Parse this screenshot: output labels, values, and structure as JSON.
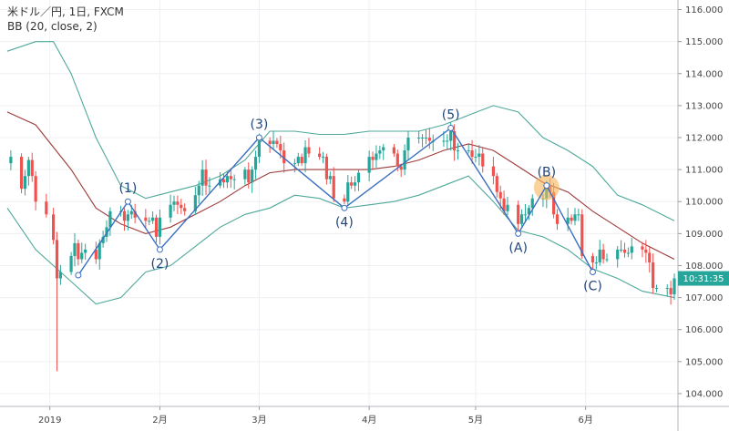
{
  "legend": {
    "symbol_line": "米ドル／円, 1日, FXCM",
    "indicator_line": "BB (20, close, 2)"
  },
  "price_tag": {
    "text": "10:31:35",
    "color": "#26a69a"
  },
  "colors": {
    "up": "#26a69a",
    "down": "#ef5350",
    "band": "#4fa89a",
    "basis": "#9e3a3a",
    "wave": "#3a6fbf",
    "highlight": "#f7b55a"
  },
  "chart_data": {
    "type": "candlestick",
    "title": "米ドル／円, 1日, FXCM",
    "indicator": "BB (20, close, 2)",
    "y_range": [
      103.6,
      116.3
    ],
    "y_ticks": [
      "116.000",
      "115.000",
      "114.000",
      "113.000",
      "112.000",
      "111.000",
      "110.000",
      "109.000",
      "108.000",
      "107.000",
      "106.000",
      "105.000",
      "104.000"
    ],
    "x_range": [
      "2018-12-20",
      "2019-06-26"
    ],
    "x_ticks": [
      {
        "date": "2019-01-01",
        "label": "2019"
      },
      {
        "date": "2019-02-01",
        "label": "2月"
      },
      {
        "date": "2019-03-01",
        "label": "3月"
      },
      {
        "date": "2019-04-01",
        "label": "4月"
      },
      {
        "date": "2019-05-01",
        "label": "5月"
      },
      {
        "date": "2019-06-01",
        "label": "6月"
      }
    ],
    "price_path": [
      [
        "2018-12-20",
        111.2
      ],
      [
        "2018-12-21",
        111.4
      ],
      [
        "2018-12-24",
        110.4
      ],
      [
        "2018-12-25",
        110.8
      ],
      [
        "2018-12-26",
        111.3
      ],
      [
        "2018-12-27",
        110.8
      ],
      [
        "2018-12-28",
        110.0
      ],
      [
        "2018-12-31",
        109.6
      ],
      [
        "2019-01-02",
        108.8
      ],
      [
        "2019-01-03",
        107.6
      ],
      [
        "2019-01-04",
        107.8
      ],
      [
        "2019-01-07",
        108.3
      ],
      [
        "2019-01-08",
        108.7
      ],
      [
        "2019-01-09",
        108.2
      ],
      [
        "2019-01-10",
        108.4
      ],
      [
        "2019-01-11",
        108.5
      ],
      [
        "2019-01-14",
        108.2
      ],
      [
        "2019-01-15",
        108.7
      ],
      [
        "2019-01-16",
        108.9
      ],
      [
        "2019-01-17",
        109.2
      ],
      [
        "2019-01-18",
        109.7
      ],
      [
        "2019-01-21",
        109.7
      ],
      [
        "2019-01-22",
        109.4
      ],
      [
        "2019-01-23",
        109.6
      ],
      [
        "2019-01-24",
        109.7
      ],
      [
        "2019-01-25",
        109.5
      ],
      [
        "2019-01-28",
        109.4
      ],
      [
        "2019-01-29",
        109.4
      ],
      [
        "2019-01-30",
        109.5
      ],
      [
        "2019-01-31",
        108.9
      ],
      [
        "2019-02-01",
        109.5
      ],
      [
        "2019-02-04",
        109.9
      ],
      [
        "2019-02-05",
        110.0
      ],
      [
        "2019-02-06",
        109.9
      ],
      [
        "2019-02-07",
        109.8
      ],
      [
        "2019-02-08",
        109.7
      ],
      [
        "2019-02-11",
        110.2
      ],
      [
        "2019-02-12",
        110.5
      ],
      [
        "2019-02-13",
        111.0
      ],
      [
        "2019-02-14",
        110.5
      ],
      [
        "2019-02-15",
        110.5
      ],
      [
        "2019-02-18",
        110.7
      ],
      [
        "2019-02-19",
        110.6
      ],
      [
        "2019-02-20",
        110.8
      ],
      [
        "2019-02-21",
        110.7
      ],
      [
        "2019-02-22",
        110.7
      ],
      [
        "2019-02-25",
        111.0
      ],
      [
        "2019-02-26",
        110.6
      ],
      [
        "2019-02-27",
        111.0
      ],
      [
        "2019-02-28",
        111.4
      ],
      [
        "2019-03-01",
        111.9
      ],
      [
        "2019-03-04",
        111.8
      ],
      [
        "2019-03-05",
        111.9
      ],
      [
        "2019-03-06",
        111.8
      ],
      [
        "2019-03-07",
        111.6
      ],
      [
        "2019-03-08",
        111.2
      ],
      [
        "2019-03-11",
        111.2
      ],
      [
        "2019-03-12",
        111.4
      ],
      [
        "2019-03-13",
        111.2
      ],
      [
        "2019-03-14",
        111.7
      ],
      [
        "2019-03-15",
        111.5
      ],
      [
        "2019-03-18",
        111.4
      ],
      [
        "2019-03-19",
        111.4
      ],
      [
        "2019-03-20",
        110.7
      ],
      [
        "2019-03-21",
        110.8
      ],
      [
        "2019-03-22",
        110.1
      ],
      [
        "2019-03-25",
        110.0
      ],
      [
        "2019-03-26",
        110.6
      ],
      [
        "2019-03-27",
        110.5
      ],
      [
        "2019-03-28",
        110.6
      ],
      [
        "2019-03-29",
        110.9
      ],
      [
        "2019-04-01",
        111.4
      ],
      [
        "2019-04-02",
        111.3
      ],
      [
        "2019-04-03",
        111.5
      ],
      [
        "2019-04-04",
        111.6
      ],
      [
        "2019-04-05",
        111.7
      ],
      [
        "2019-04-08",
        111.5
      ],
      [
        "2019-04-09",
        111.1
      ],
      [
        "2019-04-10",
        111.0
      ],
      [
        "2019-04-11",
        111.6
      ],
      [
        "2019-04-12",
        112.0
      ],
      [
        "2019-04-15",
        112.0
      ],
      [
        "2019-04-16",
        112.0
      ],
      [
        "2019-04-17",
        112.0
      ],
      [
        "2019-04-18",
        111.9
      ],
      [
        "2019-04-19",
        111.9
      ],
      [
        "2019-04-22",
        111.9
      ],
      [
        "2019-04-23",
        111.9
      ],
      [
        "2019-04-24",
        112.2
      ],
      [
        "2019-04-25",
        111.6
      ],
      [
        "2019-04-26",
        111.6
      ],
      [
        "2019-04-29",
        111.6
      ],
      [
        "2019-04-30",
        111.4
      ],
      [
        "2019-05-01",
        111.4
      ],
      [
        "2019-05-02",
        111.5
      ],
      [
        "2019-05-03",
        111.1
      ],
      [
        "2019-05-06",
        110.8
      ],
      [
        "2019-05-07",
        110.3
      ],
      [
        "2019-05-08",
        110.1
      ],
      [
        "2019-05-09",
        109.7
      ],
      [
        "2019-05-10",
        109.9
      ],
      [
        "2019-05-13",
        109.3
      ],
      [
        "2019-05-14",
        109.6
      ],
      [
        "2019-05-15",
        109.6
      ],
      [
        "2019-05-16",
        109.8
      ],
      [
        "2019-05-17",
        110.1
      ],
      [
        "2019-05-20",
        110.1
      ],
      [
        "2019-05-21",
        110.5
      ],
      [
        "2019-05-22",
        110.3
      ],
      [
        "2019-05-23",
        109.6
      ],
      [
        "2019-05-24",
        109.3
      ],
      [
        "2019-05-27",
        109.5
      ],
      [
        "2019-05-28",
        109.4
      ],
      [
        "2019-05-29",
        109.6
      ],
      [
        "2019-05-30",
        109.6
      ],
      [
        "2019-05-31",
        108.3
      ],
      [
        "2019-06-03",
        108.1
      ],
      [
        "2019-06-04",
        108.1
      ],
      [
        "2019-06-05",
        108.5
      ],
      [
        "2019-06-06",
        108.2
      ],
      [
        "2019-06-07",
        108.2
      ],
      [
        "2019-06-10",
        108.5
      ],
      [
        "2019-06-11",
        108.5
      ],
      [
        "2019-06-12",
        108.4
      ],
      [
        "2019-06-13",
        108.4
      ],
      [
        "2019-06-14",
        108.6
      ],
      [
        "2019-06-17",
        108.5
      ],
      [
        "2019-06-18",
        108.4
      ],
      [
        "2019-06-19",
        108.1
      ],
      [
        "2019-06-20",
        107.3
      ],
      [
        "2019-06-21",
        107.3
      ],
      [
        "2019-06-24",
        107.3
      ],
      [
        "2019-06-25",
        107.1
      ],
      [
        "2019-06-26",
        107.6
      ]
    ],
    "spike_low": {
      "date": "2019-01-03",
      "low": 104.7
    },
    "bollinger": {
      "upper": [
        [
          "2018-12-20",
          114.7
        ],
        [
          "2018-12-28",
          115.0
        ],
        [
          "2019-01-02",
          115.0
        ],
        [
          "2019-01-07",
          114.0
        ],
        [
          "2019-01-14",
          112.0
        ],
        [
          "2019-01-21",
          110.5
        ],
        [
          "2019-01-28",
          110.1
        ],
        [
          "2019-02-04",
          110.3
        ],
        [
          "2019-02-11",
          110.5
        ],
        [
          "2019-02-18",
          110.8
        ],
        [
          "2019-02-25",
          111.3
        ],
        [
          "2019-03-04",
          112.2
        ],
        [
          "2019-03-11",
          112.2
        ],
        [
          "2019-03-18",
          112.1
        ],
        [
          "2019-03-25",
          112.1
        ],
        [
          "2019-04-01",
          112.2
        ],
        [
          "2019-04-08",
          112.2
        ],
        [
          "2019-04-15",
          112.2
        ],
        [
          "2019-04-22",
          112.4
        ],
        [
          "2019-04-29",
          112.7
        ],
        [
          "2019-05-06",
          113.0
        ],
        [
          "2019-05-13",
          112.8
        ],
        [
          "2019-05-20",
          112.0
        ],
        [
          "2019-05-27",
          111.6
        ],
        [
          "2019-06-03",
          111.1
        ],
        [
          "2019-06-10",
          110.2
        ],
        [
          "2019-06-17",
          109.9
        ],
        [
          "2019-06-26",
          109.4
        ]
      ],
      "basis": [
        [
          "2018-12-20",
          112.8
        ],
        [
          "2018-12-28",
          112.4
        ],
        [
          "2019-01-07",
          111.0
        ],
        [
          "2019-01-14",
          109.8
        ],
        [
          "2019-01-21",
          109.3
        ],
        [
          "2019-01-28",
          109.0
        ],
        [
          "2019-02-04",
          109.2
        ],
        [
          "2019-02-11",
          109.6
        ],
        [
          "2019-02-18",
          110.0
        ],
        [
          "2019-02-25",
          110.5
        ],
        [
          "2019-03-04",
          110.9
        ],
        [
          "2019-03-11",
          111.0
        ],
        [
          "2019-03-18",
          111.0
        ],
        [
          "2019-03-25",
          111.0
        ],
        [
          "2019-04-01",
          111.0
        ],
        [
          "2019-04-08",
          111.1
        ],
        [
          "2019-04-15",
          111.3
        ],
        [
          "2019-04-22",
          111.6
        ],
        [
          "2019-04-29",
          111.8
        ],
        [
          "2019-05-06",
          111.6
        ],
        [
          "2019-05-13",
          111.1
        ],
        [
          "2019-05-20",
          110.6
        ],
        [
          "2019-05-27",
          110.3
        ],
        [
          "2019-06-03",
          109.7
        ],
        [
          "2019-06-10",
          109.2
        ],
        [
          "2019-06-17",
          108.7
        ],
        [
          "2019-06-26",
          108.2
        ]
      ],
      "lower": [
        [
          "2018-12-20",
          109.8
        ],
        [
          "2018-12-28",
          108.5
        ],
        [
          "2019-01-07",
          107.5
        ],
        [
          "2019-01-14",
          106.8
        ],
        [
          "2019-01-21",
          107.0
        ],
        [
          "2019-01-28",
          107.8
        ],
        [
          "2019-02-04",
          108.0
        ],
        [
          "2019-02-11",
          108.6
        ],
        [
          "2019-02-18",
          109.2
        ],
        [
          "2019-02-25",
          109.6
        ],
        [
          "2019-03-04",
          109.8
        ],
        [
          "2019-03-11",
          110.2
        ],
        [
          "2019-03-18",
          110.1
        ],
        [
          "2019-03-25",
          109.8
        ],
        [
          "2019-04-01",
          109.9
        ],
        [
          "2019-04-08",
          110.0
        ],
        [
          "2019-04-15",
          110.2
        ],
        [
          "2019-04-22",
          110.5
        ],
        [
          "2019-04-29",
          110.8
        ],
        [
          "2019-05-06",
          110.0
        ],
        [
          "2019-05-13",
          109.1
        ],
        [
          "2019-05-20",
          108.9
        ],
        [
          "2019-05-27",
          108.5
        ],
        [
          "2019-06-03",
          107.9
        ],
        [
          "2019-06-10",
          107.6
        ],
        [
          "2019-06-17",
          107.2
        ],
        [
          "2019-06-26",
          107.0
        ]
      ]
    },
    "elliott_wave": [
      {
        "label": "",
        "date": "2019-01-09",
        "price": 107.7,
        "label_side": "none"
      },
      {
        "label": "(1)",
        "date": "2019-01-23",
        "price": 110.0,
        "label_side": "above"
      },
      {
        "label": "(2)",
        "date": "2019-02-01",
        "price": 108.5,
        "label_side": "below"
      },
      {
        "label": "(3)",
        "date": "2019-03-01",
        "price": 112.0,
        "label_side": "above"
      },
      {
        "label": "(4)",
        "date": "2019-03-25",
        "price": 109.8,
        "label_side": "below"
      },
      {
        "label": "(5)",
        "date": "2019-04-24",
        "price": 112.3,
        "label_side": "above"
      },
      {
        "label": "(A)",
        "date": "2019-05-13",
        "price": 109.0,
        "label_side": "below"
      },
      {
        "label": "(B)",
        "date": "2019-05-21",
        "price": 110.5,
        "label_side": "above"
      },
      {
        "label": "(C)",
        "date": "2019-06-03",
        "price": 107.8,
        "label_side": "below"
      }
    ],
    "highlight_label": "(B)",
    "current_price_label": "10:31:35"
  }
}
